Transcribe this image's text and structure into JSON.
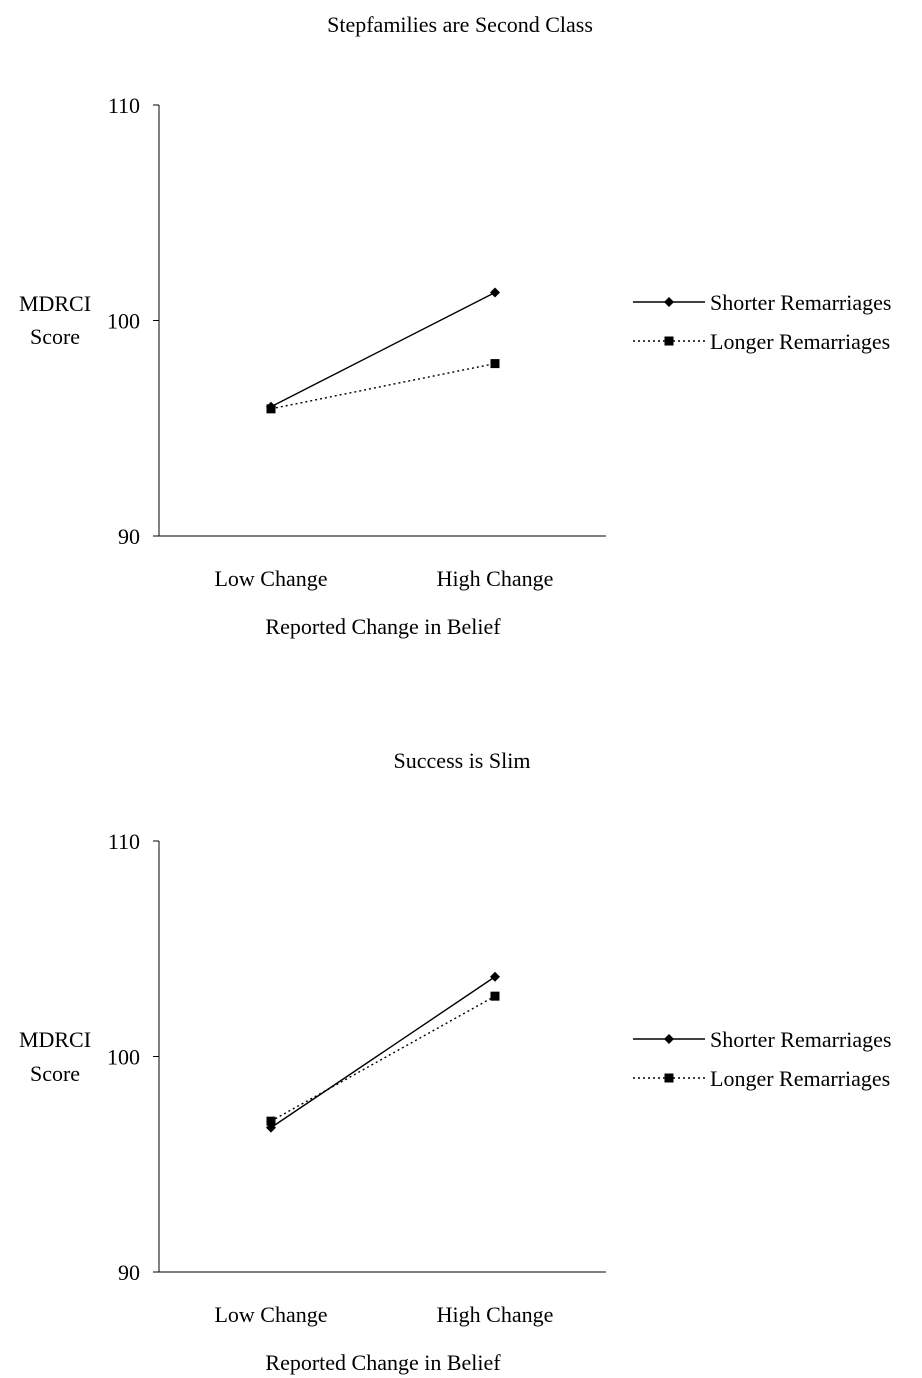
{
  "chart_data": [
    {
      "type": "line",
      "title": "Stepfamilies are Second Class",
      "categories": [
        "Low Change",
        "High Change"
      ],
      "xlabel": "Reported Change in Belief",
      "ylabel_lines": [
        "MDRCI",
        "Score"
      ],
      "ylim": [
        90,
        110
      ],
      "yticks": [
        "90",
        "100",
        "110"
      ],
      "grid": false,
      "legend_position": "right",
      "series": [
        {
          "name": "Shorter Remarriages",
          "values": [
            96.0,
            101.3
          ],
          "line_style": "solid",
          "marker": "diamond",
          "color": "#000000"
        },
        {
          "name": "Longer Remarriages",
          "values": [
            95.9,
            98.0
          ],
          "line_style": "dotted",
          "marker": "square",
          "color": "#000000"
        }
      ]
    },
    {
      "type": "line",
      "title": "Success is Slim",
      "categories": [
        "Low Change",
        "High Change"
      ],
      "xlabel": "Reported Change in Belief",
      "ylabel_lines": [
        "MDRCI",
        "Score"
      ],
      "ylim": [
        90,
        110
      ],
      "yticks": [
        "90",
        "100",
        "110"
      ],
      "grid": false,
      "legend_position": "right",
      "series": [
        {
          "name": "Shorter Remarriages",
          "values": [
            96.7,
            103.7
          ],
          "line_style": "solid",
          "marker": "diamond",
          "color": "#000000"
        },
        {
          "name": "Longer Remarriages",
          "values": [
            97.0,
            102.8
          ],
          "line_style": "dotted",
          "marker": "square",
          "color": "#000000"
        }
      ]
    }
  ]
}
